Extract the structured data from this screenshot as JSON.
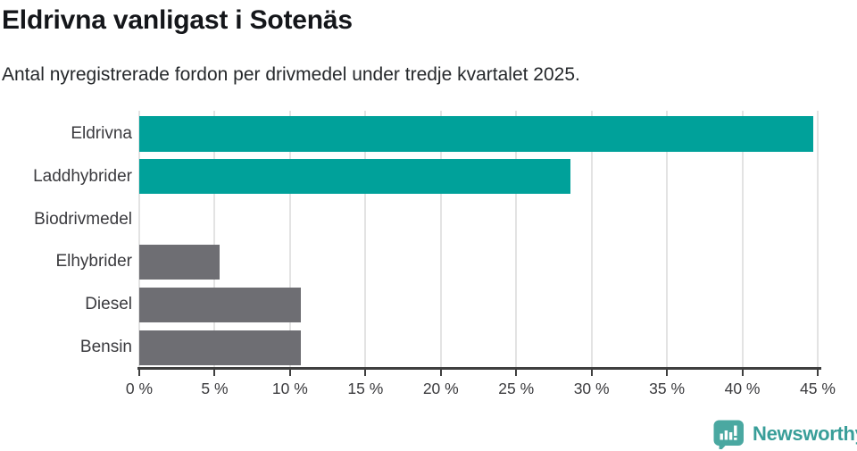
{
  "title": "Eldrivna vanligast i Sotenäs",
  "subtitle": "Antal nyregistrerade fordon per drivmedel under tredje kvartalet 2025.",
  "chart_data": {
    "type": "bar",
    "orientation": "horizontal",
    "title": "Eldrivna vanligast i Sotenäs",
    "subtitle": "Antal nyregistrerade fordon per drivmedel under tredje kvartalet 2025.",
    "categories": [
      "Eldrivna",
      "Laddhybrider",
      "Biodrivmedel",
      "Elhybrider",
      "Diesel",
      "Bensin"
    ],
    "values": [
      44.7,
      28.6,
      0,
      5.3,
      10.7,
      10.7
    ],
    "unit": "%",
    "xlim": [
      0,
      45
    ],
    "x_ticks": [
      0,
      5,
      10,
      15,
      20,
      25,
      30,
      35,
      40,
      45
    ],
    "x_tick_labels": [
      "0 %",
      "5 %",
      "10 %",
      "15 %",
      "20 %",
      "25 %",
      "30 %",
      "35 %",
      "40 %",
      "45 %"
    ],
    "grid": true,
    "legend": false,
    "colors": {
      "highlight": "#00a19a",
      "default": "#6e6e73",
      "gridline": "#e3e3e3",
      "axis": "#3f3f3f"
    },
    "bar_colors": [
      "#00a19a",
      "#00a19a",
      "#00a19a",
      "#6e6e73",
      "#6e6e73",
      "#6e6e73"
    ]
  },
  "branding": {
    "logo_text": "Newsworthy",
    "logo_color": "#399e99",
    "logo_icon": "newsworthy-chart-pin-icon",
    "logo_icon_color": "#4aa8a1"
  }
}
